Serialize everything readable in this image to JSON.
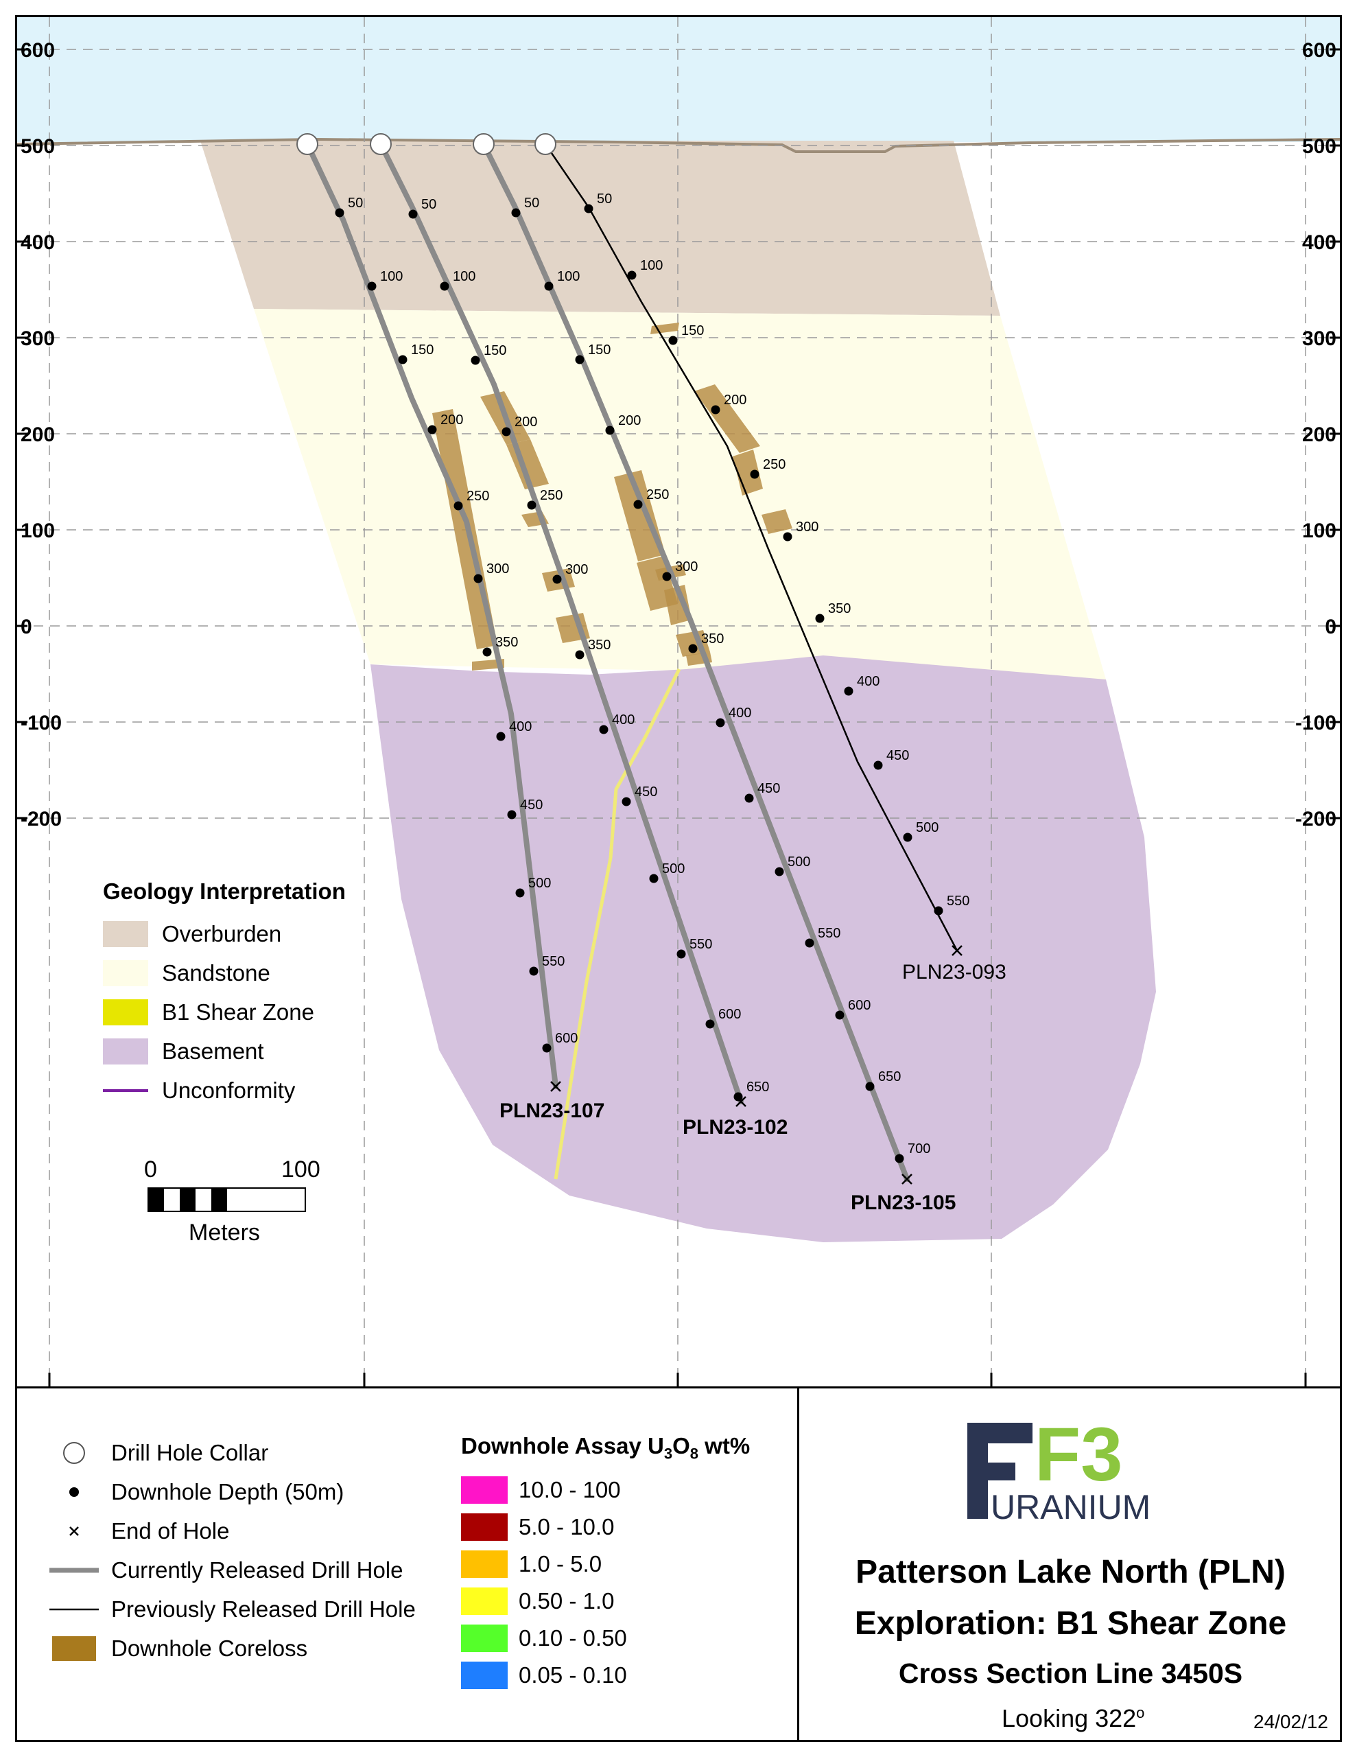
{
  "cross_section": {
    "elevation_ticks": [
      "600",
      "500",
      "400",
      "300",
      "200",
      "100",
      "0",
      "-100",
      "-200"
    ],
    "colors": {
      "sky": "#dff3fb",
      "overburden": "#e2d5c8",
      "sandstone": "#fefde8",
      "basement": "#d5c2de",
      "shear_zone_line": "#f0ea78",
      "coreloss": "#b88f49",
      "current_hole": "#8a8a8a",
      "previous_hole": "#000000",
      "grid": "#9a9a9a"
    },
    "holes": [
      {
        "id": "PLN23-107",
        "label": "PLN23-107",
        "style": "current",
        "depth_labels": [
          "50",
          "100",
          "150",
          "200",
          "250",
          "300",
          "350",
          "400",
          "450",
          "500",
          "550",
          "600"
        ]
      },
      {
        "id": "PLN23-102",
        "label": "PLN23-102",
        "style": "current",
        "depth_labels": [
          "50",
          "100",
          "150",
          "200",
          "250",
          "300",
          "350",
          "400",
          "450",
          "500",
          "550",
          "600",
          "650"
        ]
      },
      {
        "id": "PLN23-105",
        "label": "PLN23-105",
        "style": "current",
        "depth_labels": [
          "50",
          "100",
          "150",
          "200",
          "250",
          "300",
          "350",
          "400",
          "450",
          "500",
          "550",
          "600",
          "650",
          "700"
        ]
      },
      {
        "id": "PLN23-093",
        "label": "PLN23-093",
        "style": "previous",
        "depth_labels": [
          "50",
          "100",
          "150",
          "200",
          "250",
          "300",
          "350",
          "400",
          "450",
          "500",
          "550"
        ]
      }
    ]
  },
  "geology_legend": {
    "title": "Geology Interpretation",
    "items": [
      {
        "label": "Overburden",
        "color": "#e2d5c8",
        "kind": "fill"
      },
      {
        "label": "Sandstone",
        "color": "#fefde8",
        "kind": "fill"
      },
      {
        "label": "B1 Shear Zone",
        "color": "#e7e600",
        "kind": "fill"
      },
      {
        "label": "Basement",
        "color": "#d5c2de",
        "kind": "fill"
      },
      {
        "label": "Unconformity",
        "color": "#7b1fa2",
        "kind": "line"
      }
    ]
  },
  "scale_bar": {
    "start_label": "0",
    "end_label": "100",
    "unit_label": "Meters"
  },
  "symbol_legend": [
    {
      "label": "Drill Hole Collar",
      "icon": "collar-icon"
    },
    {
      "label": "Downhole Depth (50m)",
      "icon": "depth-dot-icon"
    },
    {
      "label": "End of Hole",
      "icon": "end-of-hole-icon"
    },
    {
      "label": "Currently Released Drill Hole",
      "icon": "current-hole-line-icon"
    },
    {
      "label": "Previously Released Drill Hole",
      "icon": "previous-hole-line-icon"
    },
    {
      "label": "Downhole Coreloss",
      "icon": "coreloss-swatch",
      "color": "#a87a1e"
    }
  ],
  "assay_legend": {
    "title_prefix": "Downhole Assay U",
    "title_sub1": "3",
    "title_mid": "O",
    "title_sub2": "8",
    "title_suffix": " wt%",
    "items": [
      {
        "label": "10.0 - 100",
        "color": "#ff14c8"
      },
      {
        "label": "5.0 - 10.0",
        "color": "#a80000"
      },
      {
        "label": "1.0 - 5.0",
        "color": "#ffc000"
      },
      {
        "label": "0.50 - 1.0",
        "color": "#ffff1e"
      },
      {
        "label": "0.10 - 0.50",
        "color": "#55ff2a"
      },
      {
        "label": "0.05 - 0.10",
        "color": "#1e7eff"
      }
    ]
  },
  "title_block": {
    "logo_mark": "F3",
    "logo_word": "URANIUM",
    "logo_colors": {
      "navy": "#2b3552",
      "green": "#8cc63f"
    },
    "line1": "Patterson Lake North (PLN)",
    "line2": "Exploration: B1 Shear Zone",
    "line3": "Cross Section Line 3450S",
    "looking": "Looking 322",
    "looking_degree": "o",
    "date": "24/02/12"
  }
}
